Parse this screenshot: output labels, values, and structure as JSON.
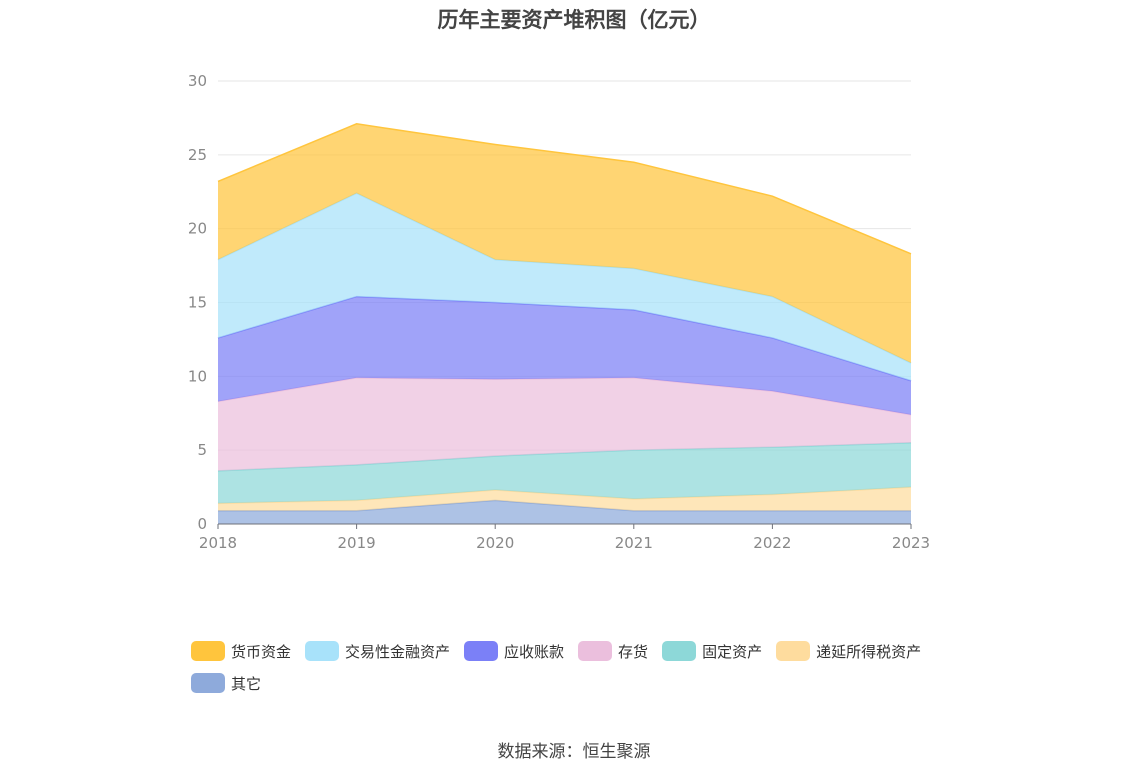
{
  "chart_data": {
    "type": "area",
    "stacked": true,
    "title": "历年主要资产堆积图（亿元）",
    "x": [
      "2018",
      "2019",
      "2020",
      "2021",
      "2022",
      "2023"
    ],
    "ylim": [
      0,
      30
    ],
    "yticks": [
      0,
      5,
      10,
      15,
      20,
      25,
      30
    ],
    "grid": true,
    "legend_position": "bottom",
    "series": [
      {
        "name": "其它",
        "color": "#8eaadb",
        "values": [
          0.9,
          0.9,
          1.6,
          0.9,
          0.9,
          0.9
        ]
      },
      {
        "name": "递延所得税资产",
        "color": "#fedc9e",
        "values": [
          0.5,
          0.7,
          0.7,
          0.8,
          1.1,
          1.6
        ]
      },
      {
        "name": "固定资产",
        "color": "#8dd8d8",
        "values": [
          2.2,
          2.4,
          2.3,
          3.3,
          3.2,
          3.0
        ]
      },
      {
        "name": "存货",
        "color": "#ebbfdd",
        "values": [
          4.7,
          5.9,
          5.2,
          4.9,
          3.8,
          1.9
        ]
      },
      {
        "name": "应收账款",
        "color": "#7b80f7",
        "values": [
          4.3,
          5.5,
          5.2,
          4.6,
          3.6,
          2.3
        ]
      },
      {
        "name": "交易性金融资产",
        "color": "#a8e2fa",
        "values": [
          5.3,
          7.0,
          2.9,
          2.8,
          2.8,
          1.2
        ]
      },
      {
        "name": "货币资金",
        "color": "#ffc53d",
        "values": [
          5.3,
          4.7,
          7.8,
          7.2,
          6.8,
          7.4
        ]
      }
    ],
    "legend_order": [
      "货币资金",
      "交易性金融资产",
      "应收账款",
      "存货",
      "固定资产",
      "递延所得税资产",
      "其它"
    ]
  },
  "source": "数据来源：恒生聚源"
}
